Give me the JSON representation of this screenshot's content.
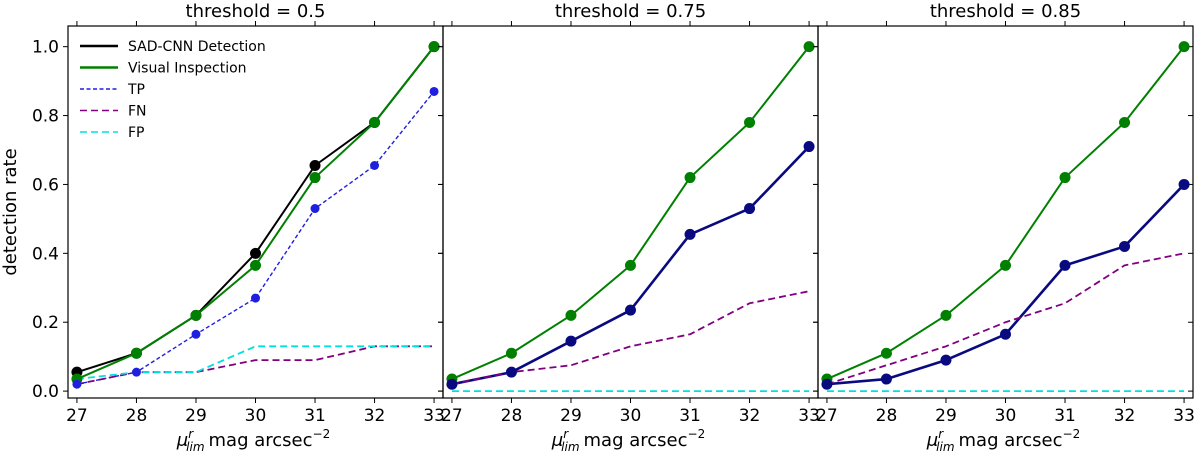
{
  "chart_data": [
    {
      "type": "line",
      "title": "threshold = 0.5",
      "xlabel": "mag arcsec",
      "xlabel_symbol": "μ",
      "xlabel_sup": "r",
      "xlabel_sub": "lim",
      "xlabel_exp": "−2",
      "ylabel": "detection rate",
      "x": [
        27,
        28,
        29,
        30,
        31,
        32,
        33
      ],
      "xlim": [
        26.85,
        33.15
      ],
      "ylim": [
        -0.02,
        1.06
      ],
      "xticks": [
        "27",
        "28",
        "29",
        "30",
        "31",
        "32",
        "33"
      ],
      "yticks": [
        "0.0",
        "0.2",
        "0.4",
        "0.6",
        "0.8",
        "1.0"
      ],
      "legend": "top-left",
      "series": [
        {
          "name": "SAD-CNN Detection",
          "color": "#000000",
          "style": "solid",
          "markers": true,
          "values": [
            0.055,
            0.11,
            0.22,
            0.4,
            0.655,
            0.78,
            1.0
          ]
        },
        {
          "name": "Visual Inspection",
          "color": "#008000",
          "style": "solid",
          "markers": true,
          "values": [
            0.035,
            0.11,
            0.22,
            0.365,
            0.62,
            0.78,
            1.0
          ]
        },
        {
          "name": "TP",
          "color": "#1f1fe0",
          "style": "dotted",
          "markers": true,
          "values": [
            0.02,
            0.055,
            0.165,
            0.27,
            0.53,
            0.655,
            0.87
          ]
        },
        {
          "name": "FN",
          "color": "#800080",
          "style": "dashed",
          "markers": false,
          "values": [
            0.02,
            0.055,
            0.055,
            0.09,
            0.09,
            0.13,
            0.13
          ]
        },
        {
          "name": "FP",
          "color": "#00e0e0",
          "style": "dashed",
          "markers": false,
          "values": [
            0.035,
            0.055,
            0.055,
            0.13,
            0.13,
            0.13,
            0.13
          ]
        }
      ]
    },
    {
      "type": "line",
      "title": "threshold = 0.75",
      "xlabel": "mag arcsec",
      "xlabel_symbol": "μ",
      "xlabel_sup": "r",
      "xlabel_sub": "lim",
      "xlabel_exp": "−2",
      "x": [
        27,
        28,
        29,
        30,
        31,
        32,
        33
      ],
      "xlim": [
        26.85,
        33.15
      ],
      "ylim": [
        -0.02,
        1.06
      ],
      "xticks": [
        "27",
        "28",
        "29",
        "30",
        "31",
        "32",
        "33"
      ],
      "series": [
        {
          "name": "Visual Inspection",
          "color": "#008000",
          "style": "solid",
          "markers": true,
          "values": [
            0.035,
            0.11,
            0.22,
            0.365,
            0.62,
            0.78,
            1.0
          ]
        },
        {
          "name": "TP",
          "color": "#0a0a80",
          "style": "solid",
          "markers": true,
          "values": [
            0.02,
            0.055,
            0.145,
            0.235,
            0.455,
            0.53,
            0.71
          ]
        },
        {
          "name": "FN",
          "color": "#800080",
          "style": "dashed",
          "markers": false,
          "values": [
            0.02,
            0.055,
            0.075,
            0.13,
            0.165,
            0.255,
            0.29
          ]
        },
        {
          "name": "FP",
          "color": "#00e0e0",
          "style": "dashed",
          "markers": false,
          "values": [
            0.0,
            0.0,
            0.0,
            0.0,
            0.0,
            0.0,
            0.0
          ]
        }
      ]
    },
    {
      "type": "line",
      "title": "threshold = 0.85",
      "xlabel": "mag arcsec",
      "xlabel_symbol": "μ",
      "xlabel_sup": "r",
      "xlabel_sub": "lim",
      "xlabel_exp": "−2",
      "x": [
        27,
        28,
        29,
        30,
        31,
        32,
        33
      ],
      "xlim": [
        26.85,
        33.15
      ],
      "ylim": [
        -0.02,
        1.06
      ],
      "xticks": [
        "27",
        "28",
        "29",
        "30",
        "31",
        "32",
        "33"
      ],
      "series": [
        {
          "name": "Visual Inspection",
          "color": "#008000",
          "style": "solid",
          "markers": true,
          "values": [
            0.035,
            0.11,
            0.22,
            0.365,
            0.62,
            0.78,
            1.0
          ]
        },
        {
          "name": "TP",
          "color": "#0a0a80",
          "style": "solid",
          "markers": true,
          "values": [
            0.02,
            0.035,
            0.09,
            0.165,
            0.365,
            0.42,
            0.6
          ]
        },
        {
          "name": "FN",
          "color": "#800080",
          "style": "dashed",
          "markers": false,
          "values": [
            0.02,
            0.075,
            0.13,
            0.2,
            0.255,
            0.365,
            0.4
          ]
        },
        {
          "name": "FP",
          "color": "#00e0e0",
          "style": "dashed",
          "markers": false,
          "values": [
            0.0,
            0.0,
            0.0,
            0.0,
            0.0,
            0.0,
            0.0
          ]
        }
      ]
    }
  ]
}
